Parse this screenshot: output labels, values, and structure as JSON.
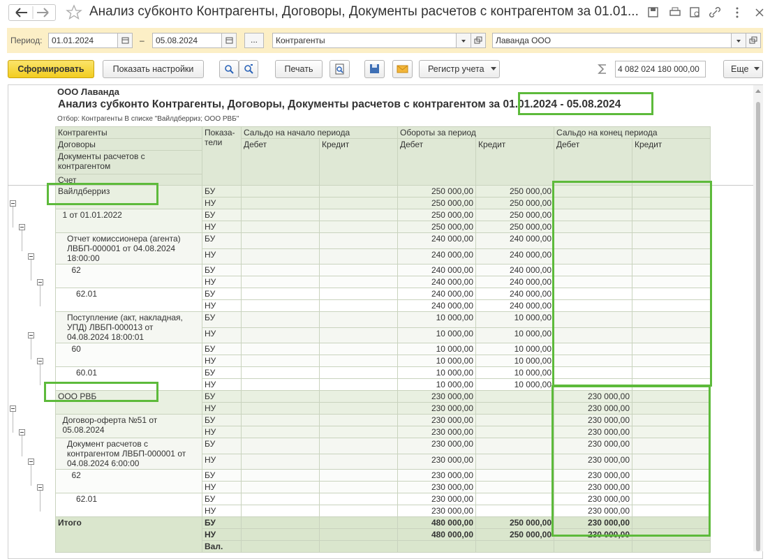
{
  "header": {
    "title": "Анализ субконто Контрагенты, Договоры, Документы расчетов с контрагентом за 01.01..."
  },
  "toolbar": {
    "period_label": "Период:",
    "date_from": "01.01.2024",
    "dash": "–",
    "date_to": "05.08.2024",
    "ellipsis": "...",
    "subconto": "Контрагенты",
    "counterparty": "Лаванда ООО"
  },
  "buttons": {
    "generate": "Сформировать",
    "settings": "Показать настройки",
    "print": "Печать",
    "register": "Регистр учета",
    "sum": "4 082 024 180 000,00",
    "more": "Еще"
  },
  "report": {
    "org": "ООО Лаванда",
    "title": "Анализ субконто Контрагенты, Договоры, Документы расчетов с контрагентом за",
    "period": "01.01.2024 - 05.08.2024",
    "filter": "Отбор: Контрагенты В списке \"Вайлдберриз; ООО РВБ\"",
    "columns": {
      "dimensions": [
        "Контрагенты",
        "Договоры",
        "Документы расчетов с контрагентом",
        "Счет"
      ],
      "indicator": [
        "Показа-",
        "тели"
      ],
      "groups": [
        "Сальдо на начало периода",
        "Обороты за период",
        "Сальдо на конец периода"
      ],
      "debit": "Дебет",
      "credit": "Кредит"
    },
    "rows": [
      {
        "label": "Вайлдберриз",
        "lines": [
          {
            "ind": "БУ",
            "turn_debit": "250 000,00",
            "turn_credit": "250 000,00"
          },
          {
            "ind": "НУ",
            "turn_debit": "250 000,00",
            "turn_credit": "250 000,00"
          }
        ],
        "children": [
          {
            "label": "1 от 01.01.2022",
            "lines": [
              {
                "ind": "БУ",
                "turn_debit": "250 000,00",
                "turn_credit": "250 000,00"
              },
              {
                "ind": "НУ",
                "turn_debit": "250 000,00",
                "turn_credit": "250 000,00"
              }
            ],
            "children": [
              {
                "label": "Отчет комиссионера (агента) ЛВБП-000001 от 04.08.2024 18:00:00",
                "lines": [
                  {
                    "ind": "БУ",
                    "turn_debit": "240 000,00",
                    "turn_credit": "240 000,00"
                  },
                  {
                    "ind": "НУ",
                    "turn_debit": "240 000,00",
                    "turn_credit": "240 000,00"
                  }
                ],
                "children": [
                  {
                    "label": "62",
                    "lines": [
                      {
                        "ind": "БУ",
                        "turn_debit": "240 000,00",
                        "turn_credit": "240 000,00"
                      },
                      {
                        "ind": "НУ",
                        "turn_debit": "240 000,00",
                        "turn_credit": "240 000,00"
                      }
                    ],
                    "children": [
                      {
                        "label": "62.01",
                        "lines": [
                          {
                            "ind": "БУ",
                            "turn_debit": "240 000,00",
                            "turn_credit": "240 000,00"
                          },
                          {
                            "ind": "НУ",
                            "turn_debit": "240 000,00",
                            "turn_credit": "240 000,00"
                          }
                        ]
                      }
                    ]
                  }
                ]
              },
              {
                "label": "Поступление (акт, накладная, УПД) ЛВБП-000013 от 04.08.2024 18:00:01",
                "lines": [
                  {
                    "ind": "БУ",
                    "turn_debit": "10 000,00",
                    "turn_credit": "10 000,00"
                  },
                  {
                    "ind": "НУ",
                    "turn_debit": "10 000,00",
                    "turn_credit": "10 000,00"
                  }
                ],
                "children": [
                  {
                    "label": "60",
                    "lines": [
                      {
                        "ind": "БУ",
                        "turn_debit": "10 000,00",
                        "turn_credit": "10 000,00"
                      },
                      {
                        "ind": "НУ",
                        "turn_debit": "10 000,00",
                        "turn_credit": "10 000,00"
                      }
                    ],
                    "children": [
                      {
                        "label": "60.01",
                        "lines": [
                          {
                            "ind": "БУ",
                            "turn_debit": "10 000,00",
                            "turn_credit": "10 000,00"
                          },
                          {
                            "ind": "НУ",
                            "turn_debit": "10 000,00",
                            "turn_credit": "10 000,00"
                          }
                        ]
                      }
                    ]
                  }
                ]
              }
            ]
          }
        ]
      },
      {
        "label": "ООО РВБ",
        "lines": [
          {
            "ind": "БУ",
            "turn_debit": "230 000,00",
            "end_debit": "230 000,00"
          },
          {
            "ind": "НУ",
            "turn_debit": "230 000,00",
            "end_debit": "230 000,00"
          }
        ],
        "children": [
          {
            "label": "Договор-оферта №51 от 05.08.2024",
            "lines": [
              {
                "ind": "БУ",
                "turn_debit": "230 000,00",
                "end_debit": "230 000,00"
              },
              {
                "ind": "НУ",
                "turn_debit": "230 000,00",
                "end_debit": "230 000,00"
              }
            ],
            "children": [
              {
                "label": "Документ расчетов с контрагентом ЛВБП-000001 от 04.08.2024 6:00:00",
                "lines": [
                  {
                    "ind": "БУ",
                    "turn_debit": "230 000,00",
                    "end_debit": "230 000,00"
                  },
                  {
                    "ind": "НУ",
                    "turn_debit": "230 000,00",
                    "end_debit": "230 000,00"
                  }
                ],
                "children": [
                  {
                    "label": "62",
                    "lines": [
                      {
                        "ind": "БУ",
                        "turn_debit": "230 000,00",
                        "end_debit": "230 000,00"
                      },
                      {
                        "ind": "НУ",
                        "turn_debit": "230 000,00",
                        "end_debit": "230 000,00"
                      }
                    ],
                    "children": [
                      {
                        "label": "62.01",
                        "lines": [
                          {
                            "ind": "БУ",
                            "turn_debit": "230 000,00",
                            "end_debit": "230 000,00"
                          },
                          {
                            "ind": "НУ",
                            "turn_debit": "230 000,00",
                            "end_debit": "230 000,00"
                          }
                        ]
                      }
                    ]
                  }
                ]
              }
            ]
          }
        ]
      }
    ],
    "total": {
      "label": "Итого",
      "lines": [
        {
          "ind": "БУ",
          "turn_debit": "480 000,00",
          "turn_credit": "250 000,00",
          "end_debit": "230 000,00"
        },
        {
          "ind": "НУ",
          "turn_debit": "480 000,00",
          "turn_credit": "250 000,00",
          "end_debit": "230 000,00"
        },
        {
          "ind": "Вал."
        }
      ]
    }
  }
}
